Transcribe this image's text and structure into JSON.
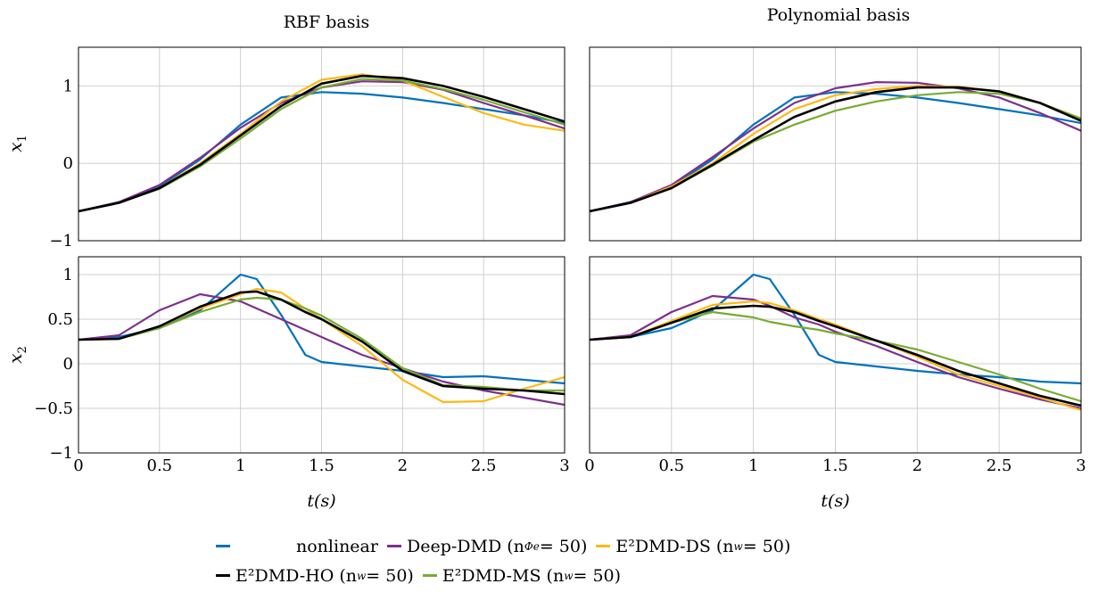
{
  "titles": {
    "left": "RBF basis",
    "right": "Polynomial basis"
  },
  "ylabels": {
    "top": "x",
    "top_sub": "1",
    "bottom": "x",
    "bottom_sub": "2"
  },
  "xlabel": "t(s)",
  "legend": [
    {
      "key": "nonlinear",
      "label": "nonlinear",
      "color": "#0072BD"
    },
    {
      "key": "deep",
      "label": "Deep-DMD (n",
      "sub": "Φe",
      "suffix": " = 50)",
      "color": "#7E2F8E"
    },
    {
      "key": "ds",
      "label": "E²DMD-DS (n",
      "sub": "w",
      "suffix": " = 50)",
      "color": "#FDB913"
    },
    {
      "key": "ho",
      "label": "E²DMD-HO (n",
      "sub": "w",
      "suffix": " = 50)",
      "color": "#000000"
    },
    {
      "key": "ms",
      "label": "E²DMD-MS (n",
      "sub": "w",
      "suffix": " = 50)",
      "color": "#77AC30"
    }
  ],
  "chart_data": [
    {
      "type": "line",
      "panel": "rbf-x1",
      "title": "RBF basis",
      "ylabel": "x1",
      "xlim": [
        0,
        3
      ],
      "ylim": [
        -1,
        1.5
      ],
      "grid": true,
      "xticks": [
        "0",
        "0.5",
        "1",
        "1.5",
        "2",
        "2.5",
        "3"
      ],
      "yticks": [
        "-1",
        "0",
        "1"
      ],
      "x": [
        0,
        0.25,
        0.5,
        0.75,
        1.0,
        1.25,
        1.5,
        1.75,
        2.0,
        2.25,
        2.5,
        2.75,
        3.0
      ],
      "series": [
        {
          "name": "nonlinear",
          "values": [
            -0.62,
            -0.5,
            -0.3,
            0.05,
            0.5,
            0.85,
            0.92,
            0.9,
            0.85,
            0.78,
            0.7,
            0.62,
            0.52
          ]
        },
        {
          "name": "Deep-DMD",
          "values": [
            -0.62,
            -0.5,
            -0.28,
            0.07,
            0.46,
            0.78,
            0.98,
            1.06,
            1.05,
            0.95,
            0.78,
            0.62,
            0.45
          ]
        },
        {
          "name": "E²DMD-DS",
          "values": [
            -0.62,
            -0.51,
            -0.32,
            0.0,
            0.38,
            0.8,
            1.08,
            1.15,
            1.07,
            0.86,
            0.65,
            0.5,
            0.42
          ]
        },
        {
          "name": "E²DMD-HO",
          "values": [
            -0.62,
            -0.51,
            -0.32,
            -0.02,
            0.36,
            0.74,
            1.03,
            1.13,
            1.1,
            1.0,
            0.86,
            0.7,
            0.54
          ]
        },
        {
          "name": "E²DMD-MS",
          "values": [
            -0.62,
            -0.51,
            -0.33,
            -0.04,
            0.32,
            0.7,
            0.98,
            1.09,
            1.07,
            0.96,
            0.82,
            0.66,
            0.5
          ]
        }
      ]
    },
    {
      "type": "line",
      "panel": "poly-x1",
      "title": "Polynomial basis",
      "ylabel": "x1",
      "xlim": [
        0,
        3
      ],
      "ylim": [
        -1,
        1.5
      ],
      "grid": true,
      "xticks": [
        "0",
        "0.5",
        "1",
        "1.5",
        "2",
        "2.5",
        "3"
      ],
      "yticks": [
        "-1",
        "0",
        "1"
      ],
      "x": [
        0,
        0.25,
        0.5,
        0.75,
        1.0,
        1.25,
        1.5,
        1.75,
        2.0,
        2.25,
        2.5,
        2.75,
        3.0
      ],
      "series": [
        {
          "name": "nonlinear",
          "values": [
            -0.62,
            -0.5,
            -0.3,
            0.05,
            0.5,
            0.85,
            0.92,
            0.9,
            0.85,
            0.78,
            0.7,
            0.62,
            0.52
          ]
        },
        {
          "name": "Deep-DMD",
          "values": [
            -0.62,
            -0.5,
            -0.28,
            0.08,
            0.45,
            0.78,
            0.97,
            1.05,
            1.04,
            0.97,
            0.85,
            0.65,
            0.42
          ]
        },
        {
          "name": "E²DMD-DS",
          "values": [
            -0.62,
            -0.51,
            -0.3,
            0.0,
            0.38,
            0.7,
            0.88,
            0.96,
            1.0,
            0.99,
            0.93,
            0.78,
            0.58
          ]
        },
        {
          "name": "E²DMD-HO",
          "values": [
            -0.62,
            -0.51,
            -0.32,
            -0.02,
            0.3,
            0.6,
            0.8,
            0.92,
            0.98,
            0.98,
            0.93,
            0.78,
            0.55
          ]
        },
        {
          "name": "E²DMD-MS",
          "values": [
            -0.62,
            -0.51,
            -0.32,
            -0.03,
            0.28,
            0.5,
            0.68,
            0.8,
            0.88,
            0.92,
            0.9,
            0.78,
            0.58
          ]
        }
      ]
    },
    {
      "type": "line",
      "panel": "rbf-x2",
      "ylabel": "x2",
      "xlabel": "t(s)",
      "xlim": [
        0,
        3
      ],
      "ylim": [
        -1,
        1.2
      ],
      "grid": true,
      "xticks": [
        "0",
        "0.5",
        "1",
        "1.5",
        "2",
        "2.5",
        "3"
      ],
      "yticks": [
        "-1",
        "-0.5",
        "0",
        "0.5",
        "1"
      ],
      "x": [
        0,
        0.25,
        0.5,
        0.75,
        1.0,
        1.1,
        1.25,
        1.4,
        1.5,
        1.75,
        2.0,
        2.25,
        2.5,
        2.75,
        3.0
      ],
      "series": [
        {
          "name": "nonlinear",
          "values": [
            0.27,
            0.3,
            0.4,
            0.6,
            1.0,
            0.95,
            0.55,
            0.1,
            0.02,
            -0.03,
            -0.08,
            -0.15,
            -0.14,
            -0.18,
            -0.22
          ]
        },
        {
          "name": "Deep-DMD",
          "values": [
            0.27,
            0.32,
            0.6,
            0.78,
            0.7,
            0.62,
            0.5,
            0.38,
            0.3,
            0.1,
            -0.05,
            -0.2,
            -0.3,
            -0.38,
            -0.46
          ]
        },
        {
          "name": "E²DMD-DS",
          "values": [
            0.27,
            0.28,
            0.42,
            0.62,
            0.78,
            0.84,
            0.8,
            0.62,
            0.5,
            0.2,
            -0.18,
            -0.43,
            -0.42,
            -0.28,
            -0.15
          ]
        },
        {
          "name": "E²DMD-HO",
          "values": [
            0.27,
            0.28,
            0.42,
            0.64,
            0.8,
            0.81,
            0.72,
            0.58,
            0.5,
            0.25,
            -0.08,
            -0.25,
            -0.28,
            -0.3,
            -0.34
          ]
        },
        {
          "name": "E²DMD-MS",
          "values": [
            0.27,
            0.28,
            0.4,
            0.58,
            0.72,
            0.74,
            0.72,
            0.62,
            0.54,
            0.28,
            -0.05,
            -0.24,
            -0.26,
            -0.3,
            -0.3
          ]
        }
      ]
    },
    {
      "type": "line",
      "panel": "poly-x2",
      "xlabel": "t(s)",
      "xlim": [
        0,
        3
      ],
      "ylim": [
        -1,
        1.2
      ],
      "grid": true,
      "xticks": [
        "0",
        "0.5",
        "1",
        "1.5",
        "2",
        "2.5",
        "3"
      ],
      "yticks": [
        "-1",
        "-0.5",
        "0",
        "0.5",
        "1"
      ],
      "x": [
        0,
        0.25,
        0.5,
        0.75,
        1.0,
        1.1,
        1.25,
        1.4,
        1.5,
        1.75,
        2.0,
        2.25,
        2.5,
        2.75,
        3.0
      ],
      "series": [
        {
          "name": "nonlinear",
          "values": [
            0.27,
            0.3,
            0.4,
            0.6,
            1.0,
            0.95,
            0.55,
            0.1,
            0.02,
            -0.03,
            -0.08,
            -0.12,
            -0.15,
            -0.2,
            -0.22
          ]
        },
        {
          "name": "Deep-DMD",
          "values": [
            0.27,
            0.32,
            0.58,
            0.76,
            0.72,
            0.65,
            0.52,
            0.44,
            0.36,
            0.2,
            0.02,
            -0.15,
            -0.28,
            -0.4,
            -0.5
          ]
        },
        {
          "name": "E²DMD-DS",
          "values": [
            0.27,
            0.3,
            0.48,
            0.66,
            0.7,
            0.68,
            0.6,
            0.5,
            0.44,
            0.26,
            0.08,
            -0.12,
            -0.25,
            -0.38,
            -0.52
          ]
        },
        {
          "name": "E²DMD-HO",
          "values": [
            0.27,
            0.3,
            0.46,
            0.62,
            0.65,
            0.64,
            0.58,
            0.48,
            0.42,
            0.26,
            0.1,
            -0.08,
            -0.22,
            -0.36,
            -0.47
          ]
        },
        {
          "name": "E²DMD-MS",
          "values": [
            0.27,
            0.3,
            0.46,
            0.58,
            0.52,
            0.47,
            0.42,
            0.38,
            0.34,
            0.26,
            0.16,
            0.02,
            -0.12,
            -0.28,
            -0.42
          ]
        }
      ]
    }
  ]
}
